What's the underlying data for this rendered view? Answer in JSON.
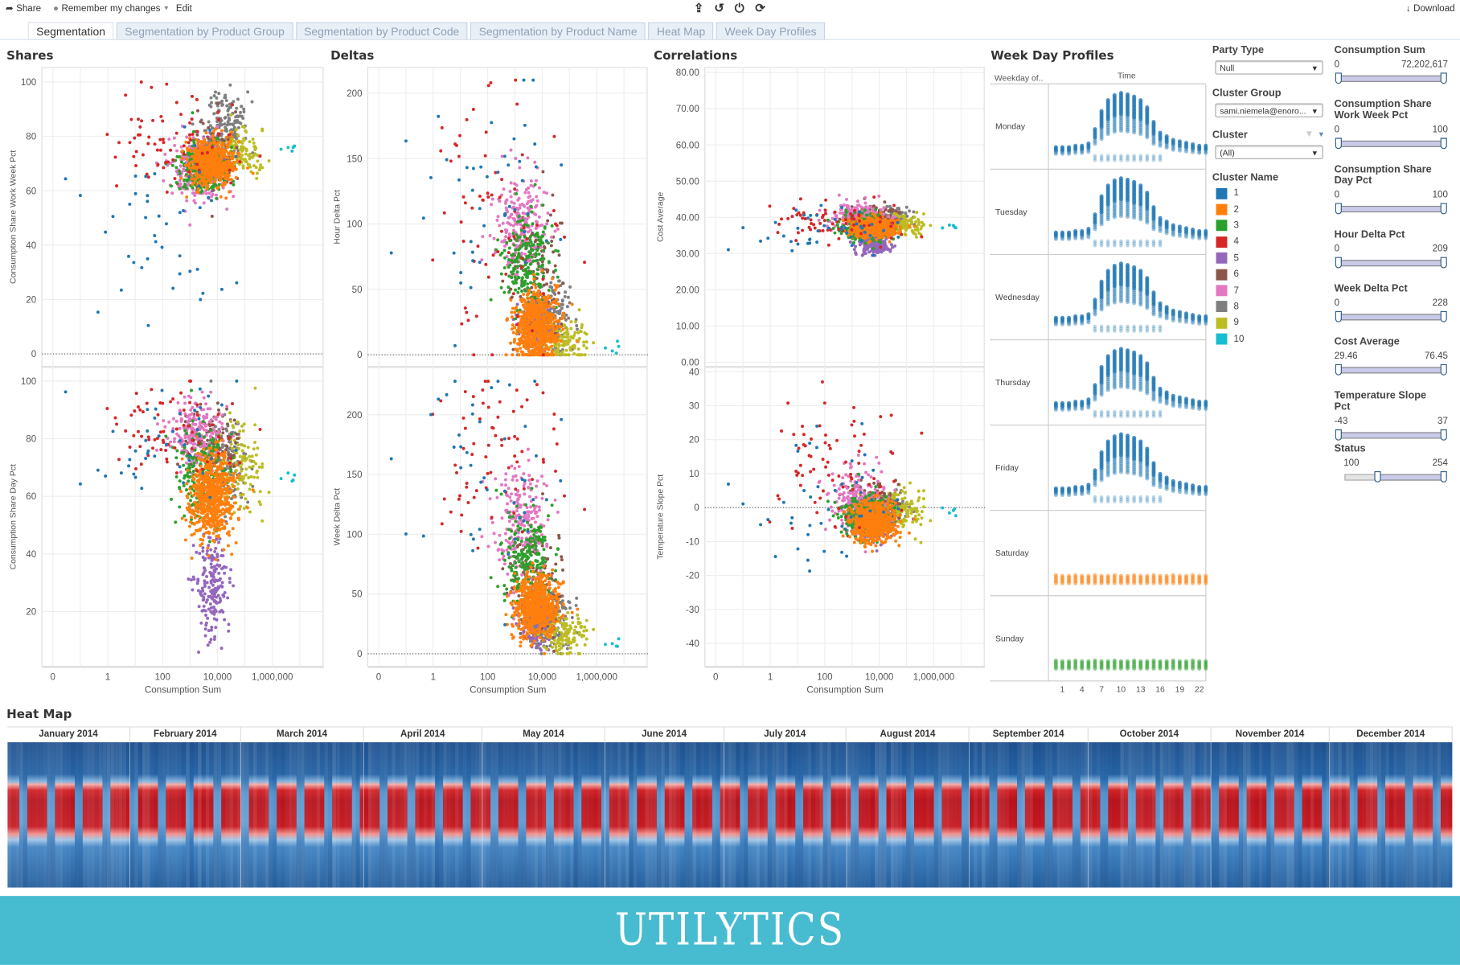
{
  "toolbar": {
    "share": "Share",
    "remember": "Remember my changes",
    "edit": "Edit",
    "download": "Download",
    "icons": [
      "export-icon",
      "undo-icon",
      "pause-icon",
      "refresh-icon"
    ]
  },
  "tabs": [
    "Segmentation",
    "Segmentation by Product Group",
    "Segmentation by Product Code",
    "Segmentation by Product Name",
    "Heat Map",
    "Week Day Profiles"
  ],
  "sections": {
    "shares": "Shares",
    "deltas": "Deltas",
    "correlations": "Correlations",
    "profiles": "Week Day Profiles",
    "heatmap": "Heat Map"
  },
  "filters": {
    "party_type": {
      "label": "Party Type",
      "value": "Null"
    },
    "cluster_group": {
      "label": "Cluster Group",
      "value": "sami.niemela@enoro..."
    },
    "cluster": {
      "label": "Cluster",
      "value": "(All)"
    },
    "cluster_name": {
      "label": "Cluster Name",
      "items": [
        "1",
        "2",
        "3",
        "4",
        "5",
        "6",
        "7",
        "8",
        "9",
        "10"
      ]
    },
    "ranges": [
      {
        "label": "Consumption Sum",
        "min": "0",
        "max": "72,202,617",
        "lo": 0,
        "hi": 1
      },
      {
        "label": "Consumption Share Work Week Pct",
        "min": "0",
        "max": "100",
        "lo": 0,
        "hi": 1
      },
      {
        "label": "Consumption Share Day Pct",
        "min": "0",
        "max": "100",
        "lo": 0,
        "hi": 1
      },
      {
        "label": "Hour Delta Pct",
        "min": "0",
        "max": "209",
        "lo": 0,
        "hi": 1
      },
      {
        "label": "Week Delta Pct",
        "min": "0",
        "max": "228",
        "lo": 0,
        "hi": 1
      },
      {
        "label": "Cost Average",
        "min": "29.46",
        "max": "76.45",
        "lo": 0,
        "hi": 1
      },
      {
        "label": "Temperature Slope Pct",
        "min": "-43",
        "max": "37",
        "lo": 0,
        "hi": 1
      },
      {
        "label": "Status",
        "min": "100",
        "max": "254",
        "lo": 0.33,
        "hi": 1
      }
    ]
  },
  "colors": [
    "#1f77b4",
    "#ff7f0e",
    "#2ca02c",
    "#d62728",
    "#9467bd",
    "#8c564b",
    "#e377c2",
    "#7f7f7f",
    "#bcbd22",
    "#17becf"
  ],
  "chart_data": {
    "type": "scatter",
    "xlabel": "Consumption Sum",
    "x_ticks": [
      {
        "v": -2,
        "label": "0"
      },
      {
        "v": 0,
        "label": "1"
      },
      {
        "v": 2,
        "label": "100"
      },
      {
        "v": 4,
        "label": "10,000"
      },
      {
        "v": 6,
        "label": "1,000,000"
      }
    ],
    "x_range_log10": [
      -2.4,
      7.85
    ],
    "panes": [
      {
        "key": "ww",
        "ylabel": "Consumption Share Work Week Pct",
        "ylim": [
          -4.8,
          105.5
        ],
        "ticks": [
          0,
          20,
          40,
          60,
          80,
          100
        ],
        "zero_line": true,
        "dec": 0
      },
      {
        "key": "day",
        "ylabel": "Consumption Share Day Pct",
        "ylim": [
          0.8,
          104.9
        ],
        "ticks": [
          20,
          40,
          60,
          80,
          100
        ],
        "zero_line": false,
        "dec": 0
      },
      {
        "key": "hour",
        "ylabel": "Hour Delta Pct",
        "ylim": [
          -9.3,
          220
        ],
        "ticks": [
          0,
          50,
          100,
          150,
          200
        ],
        "zero_line": true,
        "dec": 0
      },
      {
        "key": "week",
        "ylabel": "Week Delta Pct",
        "ylim": [
          -11,
          240
        ],
        "ticks": [
          0,
          50,
          100,
          150,
          200
        ],
        "zero_line": true,
        "dec": 0
      },
      {
        "key": "cost",
        "ylabel": "Cost Average",
        "ylim": [
          -1.3,
          81.5
        ],
        "ticks": [
          0,
          10,
          20,
          30,
          40,
          50,
          60,
          70,
          80
        ],
        "zero_line": false,
        "dec": 2
      },
      {
        "key": "temp",
        "ylabel": "Temperature Slope Pct",
        "ylim": [
          -46.9,
          41.4
        ],
        "ticks": [
          -40,
          -30,
          -20,
          -10,
          0,
          10,
          20,
          30,
          40
        ],
        "zero_line": true,
        "dec": 0
      }
    ],
    "clusters": [
      {
        "name": "1",
        "n": 45,
        "x": [
          1.6,
          1.4
        ],
        "ww": [
          50,
          25
        ],
        "day": [
          80,
          10
        ],
        "hour": [
          120,
          50
        ],
        "week": [
          150,
          45
        ],
        "cost": [
          37,
          3
        ],
        "temp": [
          5,
          10
        ]
      },
      {
        "name": "2",
        "n": 650,
        "x": [
          3.8,
          0.4
        ],
        "ww": [
          70,
          4
        ],
        "day": [
          60,
          8
        ],
        "hour": [
          20,
          14
        ],
        "week": [
          40,
          14
        ],
        "cost": [
          37,
          1.3
        ],
        "temp": [
          -4,
          3
        ]
      },
      {
        "name": "3",
        "n": 220,
        "x": [
          3.5,
          0.5
        ],
        "ww": [
          68,
          5
        ],
        "day": [
          66,
          8
        ],
        "hour": [
          70,
          20
        ],
        "week": [
          80,
          20
        ],
        "cost": [
          37,
          2
        ],
        "temp": [
          -2,
          3
        ]
      },
      {
        "name": "4",
        "n": 70,
        "x": [
          2.5,
          1.1
        ],
        "ww": [
          80,
          10
        ],
        "day": [
          82,
          10
        ],
        "hour": [
          100,
          50
        ],
        "week": [
          170,
          40
        ],
        "cost": [
          39,
          3
        ],
        "temp": [
          14,
          10
        ]
      },
      {
        "name": "5",
        "n": 200,
        "x": [
          3.8,
          0.3
        ],
        "ww": [
          72,
          4
        ],
        "day": [
          28,
          9
        ],
        "hour": [
          22,
          10
        ],
        "week": [
          25,
          10
        ],
        "cost": [
          32.5,
          1.4
        ],
        "temp": [
          -3,
          3
        ]
      },
      {
        "name": "6",
        "n": 120,
        "x": [
          3.7,
          0.5
        ],
        "ww": [
          72,
          6
        ],
        "day": [
          78,
          6
        ],
        "hour": [
          60,
          25
        ],
        "week": [
          60,
          25
        ],
        "cost": [
          40,
          1.5
        ],
        "temp": [
          0,
          4
        ]
      },
      {
        "name": "7",
        "n": 220,
        "x": [
          3.2,
          0.5
        ],
        "ww": [
          68,
          6
        ],
        "day": [
          82,
          6
        ],
        "hour": [
          100,
          20
        ],
        "week": [
          110,
          25
        ],
        "cost": [
          40,
          2
        ],
        "temp": [
          2,
          5
        ]
      },
      {
        "name": "8",
        "n": 150,
        "x": [
          4.3,
          0.4
        ],
        "ww": [
          85,
          6
        ],
        "day": [
          72,
          8
        ],
        "hour": [
          30,
          15
        ],
        "week": [
          30,
          15
        ],
        "cost": [
          40,
          1.2
        ],
        "temp": [
          0,
          2
        ]
      },
      {
        "name": "9",
        "n": 120,
        "x": [
          4.8,
          0.5
        ],
        "ww": [
          74,
          4
        ],
        "day": [
          70,
          8
        ],
        "hour": [
          10,
          8
        ],
        "week": [
          15,
          10
        ],
        "cost": [
          38,
          1.5
        ],
        "temp": [
          -1,
          3
        ]
      },
      {
        "name": "10",
        "n": 5,
        "x": [
          6.5,
          0.25
        ],
        "ww": [
          76,
          1
        ],
        "day": [
          67,
          1
        ],
        "hour": [
          5,
          2
        ],
        "week": [
          10,
          3
        ],
        "cost": [
          37.5,
          0.3
        ],
        "temp": [
          -1.5,
          1
        ]
      }
    ],
    "draw_order": [
      5,
      8,
      9,
      6,
      7,
      3,
      2,
      4,
      1,
      10
    ]
  },
  "profiles": {
    "header_row": "Weekday of..",
    "header_col": "Time",
    "days": [
      {
        "label": "Monday",
        "cluster": 1,
        "weekend": false
      },
      {
        "label": "Tuesday",
        "cluster": 1,
        "weekend": false
      },
      {
        "label": "Wednesday",
        "cluster": 1,
        "weekend": false
      },
      {
        "label": "Thursday",
        "cluster": 1,
        "weekend": false
      },
      {
        "label": "Friday",
        "cluster": 1,
        "weekend": false
      },
      {
        "label": "Saturday",
        "cluster": 2,
        "weekend": true
      },
      {
        "label": "Sunday",
        "cluster": 3,
        "weekend": true
      }
    ],
    "hour_ticks": [
      1,
      4,
      7,
      10,
      13,
      16,
      19,
      22
    ],
    "weekday_profile": [
      0.2,
      0.2,
      0.2,
      0.22,
      0.22,
      0.25,
      0.45,
      0.7,
      0.85,
      0.92,
      0.95,
      0.93,
      0.9,
      0.85,
      0.75,
      0.55,
      0.4,
      0.35,
      0.3,
      0.28,
      0.26,
      0.24,
      0.22,
      0.22
    ],
    "weekend_level": 0.17
  },
  "heatmap": {
    "year": 2014,
    "months": [
      {
        "label": "January 2014",
        "days": 31
      },
      {
        "label": "February 2014",
        "days": 28
      },
      {
        "label": "March 2014",
        "days": 31
      },
      {
        "label": "April 2014",
        "days": 30
      },
      {
        "label": "May 2014",
        "days": 31
      },
      {
        "label": "June 2014",
        "days": 30
      },
      {
        "label": "July 2014",
        "days": 31
      },
      {
        "label": "August 2014",
        "days": 31
      },
      {
        "label": "September 2014",
        "days": 30
      },
      {
        "label": "October 2014",
        "days": 31
      },
      {
        "label": "November 2014",
        "days": 30
      },
      {
        "label": "December 2014",
        "days": 31
      }
    ],
    "first_weekday": 3
  },
  "logo": "UTILYTICS"
}
